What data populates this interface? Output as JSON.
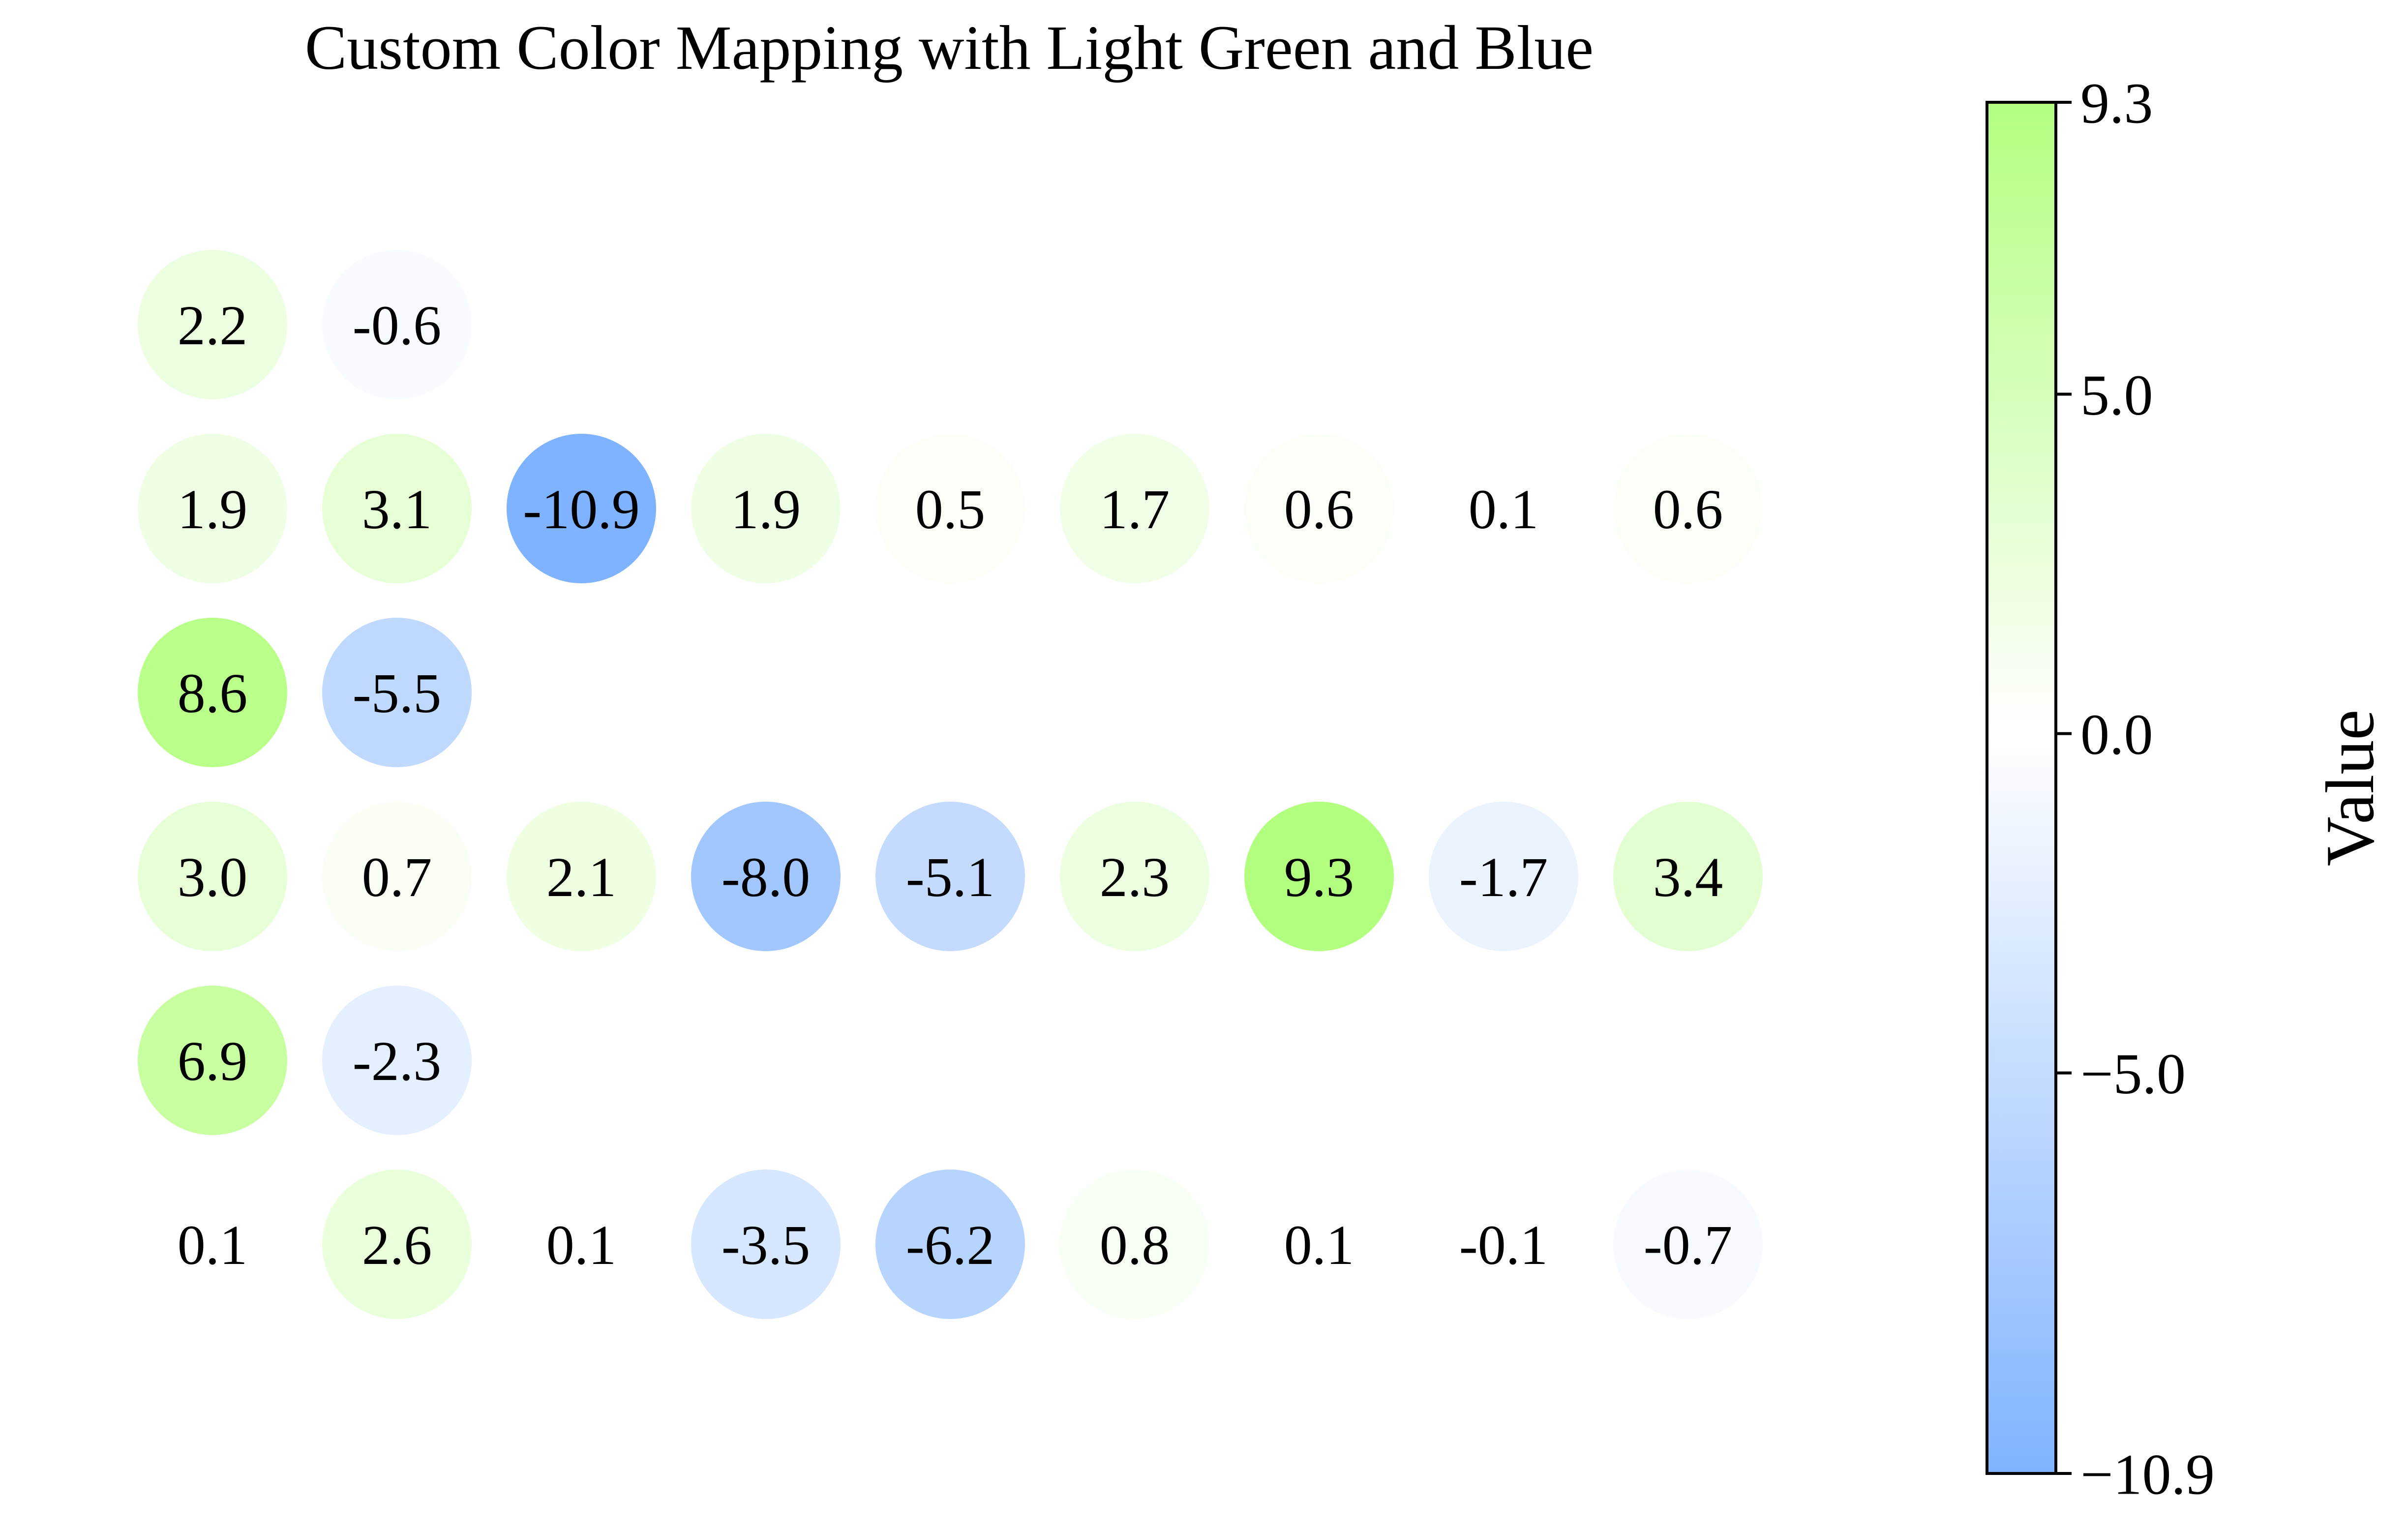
{
  "chart_data": {
    "type": "heatmap",
    "title": "Custom Color Mapping with Light Green and Blue",
    "xlabel": "",
    "ylabel": "",
    "rows": [
      [
        2.2,
        -0.6
      ],
      [
        1.9,
        3.1,
        -10.9,
        1.9,
        0.5,
        1.7,
        0.6,
        0.1,
        0.6
      ],
      [
        8.6,
        -5.5
      ],
      [
        3.0,
        0.7,
        2.1,
        -8.0,
        -5.1,
        2.3,
        9.3,
        -1.7,
        3.4
      ],
      [
        6.9,
        -2.3
      ],
      [
        0.1,
        2.6,
        0.1,
        -3.5,
        -6.2,
        0.8,
        0.1,
        -0.1,
        -0.7
      ]
    ],
    "colormap": {
      "low_color": "#80b3ff",
      "mid_color": "#ffffff",
      "high_color": "#b3ff80",
      "vmin": -10.9,
      "vcenter": 0.0,
      "vmax": 9.3
    },
    "colorbar": {
      "label": "Value",
      "ticks": [
        {
          "value": 9.3,
          "label": "9.3"
        },
        {
          "value": 5.0,
          "label": "5.0"
        },
        {
          "value": 0.0,
          "label": "0.0"
        },
        {
          "value": -5.0,
          "label": "−5.0"
        },
        {
          "value": -10.9,
          "label": "−10.9"
        }
      ]
    }
  }
}
